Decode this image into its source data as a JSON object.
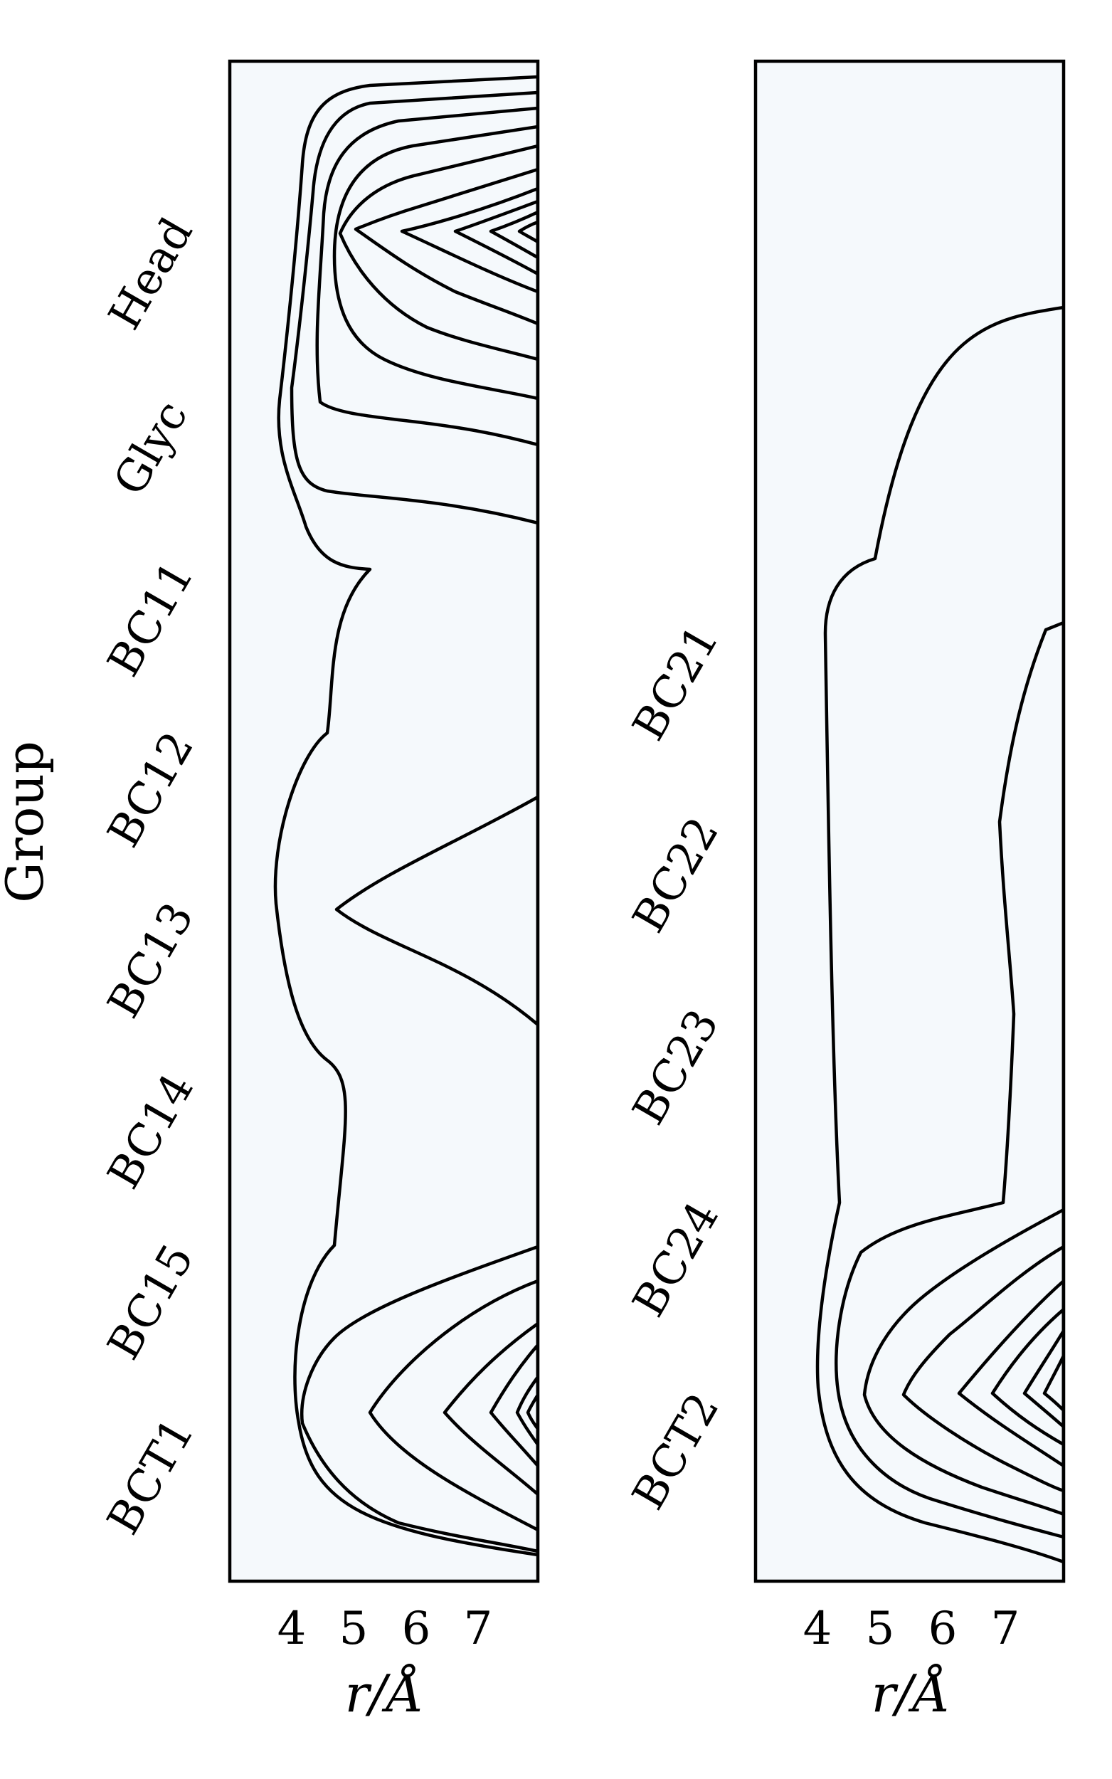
{
  "chart_data": [
    {
      "type": "contour",
      "panel": "left",
      "xlabel": "r/Å",
      "ylabel": "Group",
      "x_ticks": [
        4,
        5,
        6,
        7
      ],
      "xlim": [
        3,
        8
      ],
      "y_categories": [
        "Head",
        "Glyc",
        "BC11",
        "BC12",
        "BC13",
        "BC14",
        "BC15",
        "BCT1"
      ],
      "colormap": "BuPu",
      "grid": false,
      "levels": [
        {
          "level": 1,
          "color": "#e4eef6",
          "approx_peak_regions": [
            "all groups, r > 4"
          ]
        },
        {
          "level": 2,
          "color": "#ccdcec",
          "approx_peak_regions": [
            "Head",
            "Glyc",
            "BC13",
            "BCT1"
          ]
        },
        {
          "level": 3,
          "color": "#b1c7e2",
          "approx_peak_regions": [
            "Head",
            "BCT1"
          ]
        },
        {
          "level": 4,
          "color": "#98b2d8",
          "approx_peak_regions": [
            "Head",
            "BCT1"
          ]
        },
        {
          "level": 5,
          "color": "#8c96c7",
          "approx_peak_regions": [
            "Head",
            "BCT1"
          ]
        },
        {
          "level": 6,
          "color": "#8b76b9",
          "approx_peak_regions": [
            "Head",
            "BCT1"
          ]
        },
        {
          "level": 7,
          "color": "#8a5aab",
          "approx_peak_regions": [
            "Head"
          ]
        },
        {
          "level": 8,
          "color": "#843f9a",
          "approx_peak_regions": [
            "Head"
          ]
        },
        {
          "level": 9,
          "color": "#7d2589",
          "approx_peak_regions": [
            "Head"
          ]
        },
        {
          "level": 10,
          "color": "#6e0f74",
          "approx_peak_regions": [
            "Head"
          ]
        }
      ]
    },
    {
      "type": "contour",
      "panel": "right",
      "xlabel": "r/Å",
      "ylabel": "",
      "x_ticks": [
        4,
        5,
        6,
        7
      ],
      "xlim": [
        3,
        8
      ],
      "y_categories": [
        "BC21",
        "BC22",
        "BC23",
        "BC24",
        "BCT2"
      ],
      "colormap": "BuPu",
      "grid": false,
      "levels": [
        {
          "level": 1,
          "color": "#e4eef6",
          "approx_peak_regions": [
            "all groups, r > 4"
          ]
        },
        {
          "level": 2,
          "color": "#ccdcec",
          "approx_peak_regions": [
            "r > 7",
            "BCT2"
          ]
        },
        {
          "level": 3,
          "color": "#b1c7e2",
          "approx_peak_regions": [
            "BCT2"
          ]
        },
        {
          "level": 4,
          "color": "#98b2d8",
          "approx_peak_regions": [
            "BCT2"
          ]
        },
        {
          "level": 5,
          "color": "#8c96c7",
          "approx_peak_regions": [
            "BCT2"
          ]
        },
        {
          "level": 6,
          "color": "#8b76b9",
          "approx_peak_regions": [
            "BCT2"
          ]
        },
        {
          "level": 7,
          "color": "#8a5aab",
          "approx_peak_regions": [
            "BCT2"
          ]
        }
      ]
    }
  ],
  "colors": {
    "background": "#f5f9fc",
    "line": "#000000"
  }
}
